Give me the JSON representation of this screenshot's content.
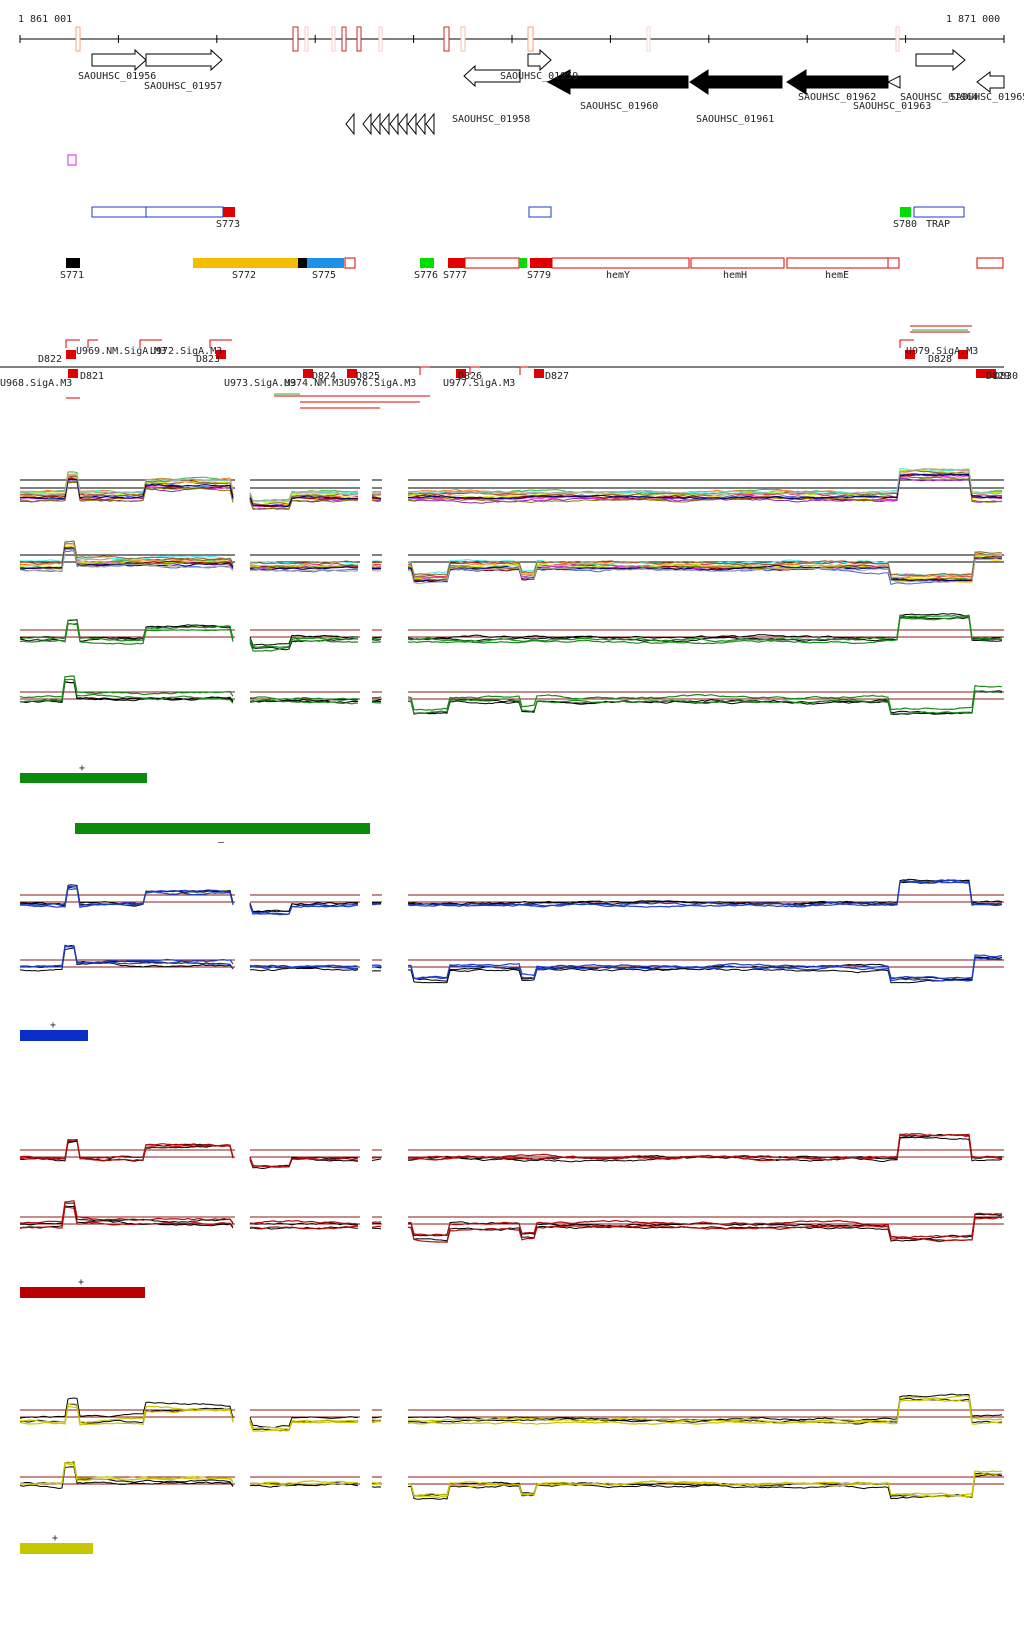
{
  "ruler": {
    "start_label": "1 861 001",
    "end_label": "1 871 000"
  },
  "genes": [
    {
      "id": "g1",
      "label": "SAOUHSC_01956"
    },
    {
      "id": "g2",
      "label": "SAOUHSC_01957"
    },
    {
      "id": "g3",
      "label": "SAOUHSC_01958"
    },
    {
      "id": "g4",
      "label": "SAOUHSC_01959"
    },
    {
      "id": "g5",
      "label": "SAOUHSC_01960"
    },
    {
      "id": "g6",
      "label": "SAOUHSC_01961"
    },
    {
      "id": "g7",
      "label": "SAOUHSC_01962"
    },
    {
      "id": "g8",
      "label": "SAOUHSC_01963"
    },
    {
      "id": "g9",
      "label": "SAOUHSC_01964"
    },
    {
      "id": "g10",
      "label": "SAOUHSC_01965"
    }
  ],
  "segments_row1": [
    {
      "id": "s773",
      "label": "S773"
    },
    {
      "id": "s780",
      "label": "S780"
    },
    {
      "id": "trap",
      "label": "TRAP"
    }
  ],
  "segments_row2": [
    {
      "id": "s771",
      "label": "S771"
    },
    {
      "id": "s772",
      "label": "S772"
    },
    {
      "id": "s775",
      "label": "S775"
    },
    {
      "id": "s776",
      "label": "S776"
    },
    {
      "id": "s777",
      "label": "S777"
    },
    {
      "id": "s779",
      "label": "S779"
    },
    {
      "id": "hemy",
      "label": "hemY"
    },
    {
      "id": "hemh",
      "label": "hemH"
    },
    {
      "id": "heme",
      "label": "hemE"
    }
  ],
  "features_upper": [
    {
      "id": "u969",
      "label": "U969.NM.SigA.M3"
    },
    {
      "id": "u972",
      "label": "U972.SigA.M3"
    },
    {
      "id": "d822",
      "label": "D822"
    },
    {
      "id": "d823",
      "label": "D823"
    },
    {
      "id": "u979",
      "label": "U979.SigA.M3"
    },
    {
      "id": "d828",
      "label": "D828"
    }
  ],
  "features_lower": [
    {
      "id": "u968",
      "label": "U968.SigA.M3"
    },
    {
      "id": "d821",
      "label": "D821"
    },
    {
      "id": "u973",
      "label": "U973.SigA.M3"
    },
    {
      "id": "u974",
      "label": "U974.NM.M3"
    },
    {
      "id": "u976",
      "label": "U976.SigA.M3"
    },
    {
      "id": "d824",
      "label": "D824"
    },
    {
      "id": "d825",
      "label": "D825"
    },
    {
      "id": "d826",
      "label": "D826"
    },
    {
      "id": "u977",
      "label": "U977.SigA.M3"
    },
    {
      "id": "d827",
      "label": "D827"
    },
    {
      "id": "d829",
      "label": "D829"
    },
    {
      "id": "d830",
      "label": "D830"
    }
  ],
  "tracks": [
    {
      "id": "multi-plus"
    },
    {
      "id": "multi-minus"
    },
    {
      "id": "green-plus",
      "color": "#1a8c1a"
    },
    {
      "id": "green-minus",
      "color": "#1a8c1a"
    },
    {
      "id": "blue-plus",
      "color": "#1c3fc4"
    },
    {
      "id": "blue-minus",
      "color": "#1c3fc4"
    },
    {
      "id": "red-plus",
      "color": "#b20d0d"
    },
    {
      "id": "red-minus",
      "color": "#b20d0d"
    },
    {
      "id": "yellow-plus",
      "color": "#c9c400"
    },
    {
      "id": "yellow-minus",
      "color": "#c9c400"
    }
  ],
  "legend_bars": [
    {
      "id": "green-bar-plus",
      "color": "#0b8a0b",
      "sign": "+"
    },
    {
      "id": "green-bar-minus",
      "color": "#0b8a0b",
      "sign": "–"
    },
    {
      "id": "blue-bar-plus",
      "color": "#0a2ec8",
      "sign": "+"
    },
    {
      "id": "red-bar-plus",
      "color": "#b90000",
      "sign": "+"
    },
    {
      "id": "yellow-bar-plus",
      "color": "#c7c700",
      "sign": "+"
    }
  ]
}
